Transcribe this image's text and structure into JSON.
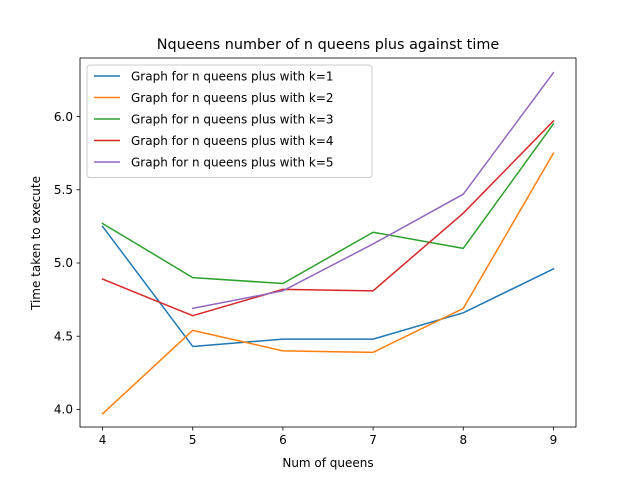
{
  "chart_data": {
    "type": "line",
    "title": "Nqueens number of n queens plus against time",
    "xlabel": "Num of queens",
    "ylabel": "Time taken to execute",
    "xlim": [
      3.75,
      9.25
    ],
    "ylim": [
      3.88,
      6.4
    ],
    "x_ticks": [
      4,
      5,
      6,
      7,
      8,
      9
    ],
    "y_ticks": [
      4.0,
      4.5,
      5.0,
      5.5,
      6.0
    ],
    "x_tick_labels": [
      "4",
      "5",
      "6",
      "7",
      "8",
      "9"
    ],
    "y_tick_labels": [
      "4.0",
      "4.5",
      "5.0",
      "5.5",
      "6.0"
    ],
    "grid": false,
    "legend_position": "upper-left",
    "series": [
      {
        "name": "Graph for n queens plus with k=1",
        "color": "#1f77b4",
        "x": [
          4,
          5,
          6,
          7,
          8,
          9
        ],
        "y": [
          5.25,
          4.43,
          4.48,
          4.48,
          4.66,
          4.96
        ]
      },
      {
        "name": "Graph for n queens plus with k=2",
        "color": "#ff7f0e",
        "x": [
          4,
          5,
          6,
          7,
          8,
          9
        ],
        "y": [
          3.97,
          4.54,
          4.4,
          4.39,
          4.69,
          5.75
        ]
      },
      {
        "name": "Graph for n queens plus with k=3",
        "color": "#2ca02c",
        "x": [
          4,
          5,
          6,
          7,
          8,
          9
        ],
        "y": [
          5.27,
          4.9,
          4.86,
          5.21,
          5.1,
          5.95
        ]
      },
      {
        "name": "Graph for n queens plus with k=4",
        "color": "#d62728",
        "x": [
          4,
          5,
          6,
          7,
          8,
          9
        ],
        "y": [
          4.89,
          4.64,
          4.82,
          4.81,
          5.34,
          5.97
        ]
      },
      {
        "name": "Graph for n queens plus with k=5",
        "color": "#9467bd",
        "x": [
          5,
          6,
          7,
          8,
          9
        ],
        "y": [
          4.69,
          4.81,
          5.13,
          5.47,
          6.3
        ]
      }
    ]
  }
}
